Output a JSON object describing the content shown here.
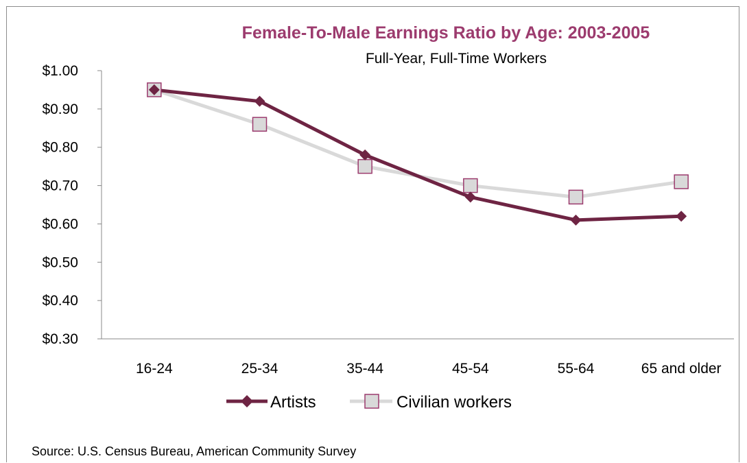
{
  "chart_data": {
    "type": "line",
    "title": "Female-To-Male Earnings Ratio by Age: 2003-2005",
    "subtitle": "Full-Year,  Full-Time  Workers",
    "categories": [
      "16-24",
      "25-34",
      "35-44",
      "45-54",
      "55-64",
      "65 and older"
    ],
    "ylim": [
      0.3,
      1.0
    ],
    "yticks": [
      "$1.00",
      "$0.90",
      "$0.80",
      "$0.70",
      "$0.60",
      "$0.50",
      "$0.40",
      "$0.30"
    ],
    "ytick_values": [
      1.0,
      0.9,
      0.8,
      0.7,
      0.6,
      0.5,
      0.4,
      0.3
    ],
    "grid": false,
    "legend_position": "bottom",
    "series": [
      {
        "name": "Artists",
        "values": [
          0.95,
          0.92,
          0.78,
          0.67,
          0.61,
          0.62
        ],
        "color": "#6e2443",
        "marker": "diamond"
      },
      {
        "name": "Civilian workers",
        "values": [
          0.95,
          0.86,
          0.75,
          0.7,
          0.67,
          0.71
        ],
        "color": "#d9d9d9",
        "marker": "square",
        "marker_fill": "#d9d9d9",
        "marker_edge": "#9c3b6e"
      }
    ],
    "source": "Source: U.S. Census Bureau, American Community Survey"
  }
}
